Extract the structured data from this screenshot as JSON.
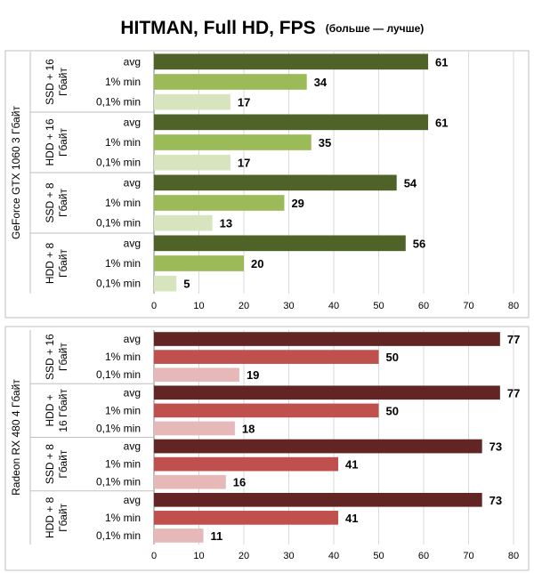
{
  "title": "HITMAN, Full HD, FPS",
  "subtitle": "(больше — лучше)",
  "chart_data": [
    {
      "type": "bar",
      "orientation": "horizontal",
      "group_label": "GeForce GTX 1060 3 Гбайт",
      "xlim": [
        0,
        80
      ],
      "xticks": [
        0,
        10,
        20,
        30,
        40,
        50,
        60,
        70,
        80
      ],
      "grid": true,
      "colors": {
        "avg": "#4f6228",
        "1% min": "#9bbb59",
        "0,1% min": "#d7e4bd"
      },
      "subgroups": [
        {
          "label": [
            "SSD + 16",
            "Гбайт"
          ],
          "bars": [
            {
              "name": "avg",
              "value": 61
            },
            {
              "name": "1% min",
              "value": 34
            },
            {
              "name": "0,1% min",
              "value": 17
            }
          ]
        },
        {
          "label": [
            "HDD + 16",
            "Гбайт"
          ],
          "bars": [
            {
              "name": "avg",
              "value": 61
            },
            {
              "name": "1% min",
              "value": 35
            },
            {
              "name": "0,1% min",
              "value": 17
            }
          ]
        },
        {
          "label": [
            "SSD + 8",
            "Гбайт"
          ],
          "bars": [
            {
              "name": "avg",
              "value": 54
            },
            {
              "name": "1% min",
              "value": 29
            },
            {
              "name": "0,1% min",
              "value": 13
            }
          ]
        },
        {
          "label": [
            "HDD + 8",
            "Гбайт"
          ],
          "bars": [
            {
              "name": "avg",
              "value": 56
            },
            {
              "name": "1% min",
              "value": 20
            },
            {
              "name": "0,1% min",
              "value": 5
            }
          ]
        }
      ]
    },
    {
      "type": "bar",
      "orientation": "horizontal",
      "group_label": "Radeon RX 480 4 Гбайт",
      "xlim": [
        0,
        80
      ],
      "xticks": [
        0,
        10,
        20,
        30,
        40,
        50,
        60,
        70,
        80
      ],
      "grid": true,
      "colors": {
        "avg": "#632523",
        "1% min": "#c0504d",
        "0,1% min": "#e6b9b8"
      },
      "subgroups": [
        {
          "label": [
            "SSD + 16",
            "Гбайт"
          ],
          "bars": [
            {
              "name": "avg",
              "value": 77
            },
            {
              "name": "1% min",
              "value": 50
            },
            {
              "name": "0,1% min",
              "value": 19
            }
          ]
        },
        {
          "label": [
            "HDD +",
            "16 Гбайт"
          ],
          "bars": [
            {
              "name": "avg",
              "value": 77
            },
            {
              "name": "1% min",
              "value": 50
            },
            {
              "name": "0,1% min",
              "value": 18
            }
          ]
        },
        {
          "label": [
            "SSD + 8",
            "Гбайт"
          ],
          "bars": [
            {
              "name": "avg",
              "value": 73
            },
            {
              "name": "1% min",
              "value": 41
            },
            {
              "name": "0,1% min",
              "value": 16
            }
          ]
        },
        {
          "label": [
            "HDD + 8",
            "Гбайт"
          ],
          "bars": [
            {
              "name": "avg",
              "value": 73
            },
            {
              "name": "1% min",
              "value": 41
            },
            {
              "name": "0,1% min",
              "value": 11
            }
          ]
        }
      ]
    }
  ]
}
